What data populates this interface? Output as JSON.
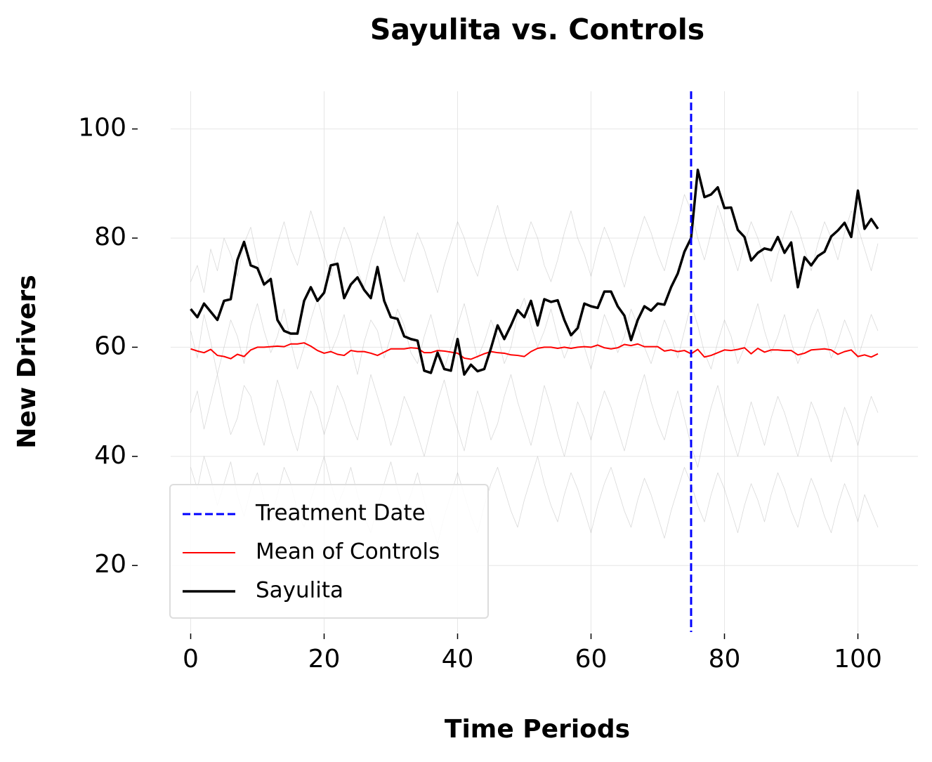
{
  "chart_data": {
    "type": "line",
    "title": "Sayulita vs. Controls",
    "x_label": "Time Periods",
    "y_label": "New Drivers",
    "xlim": [
      -3,
      109
    ],
    "xticks": [
      0,
      20,
      40,
      60,
      80,
      100
    ],
    "ylim": [
      7.8,
      106.9
    ],
    "yticks": [
      20,
      40,
      60,
      80,
      100
    ],
    "grid": true,
    "legend": "lower left",
    "x": [
      0,
      1,
      2,
      3,
      4,
      5,
      6,
      7,
      8,
      9,
      10,
      11,
      12,
      13,
      14,
      15,
      16,
      17,
      18,
      19,
      20,
      21,
      22,
      23,
      24,
      25,
      26,
      27,
      28,
      29,
      30,
      31,
      32,
      33,
      34,
      35,
      36,
      37,
      38,
      39,
      40,
      41,
      42,
      43,
      44,
      45,
      46,
      47,
      48,
      49,
      50,
      51,
      52,
      53,
      54,
      55,
      56,
      57,
      58,
      59,
      60,
      61,
      62,
      63,
      64,
      65,
      66,
      67,
      68,
      69,
      70,
      71,
      72,
      73,
      74,
      75,
      76,
      77,
      78,
      79,
      80,
      81,
      82,
      83,
      84,
      85,
      86,
      87,
      88,
      89,
      90,
      91,
      92,
      93,
      94,
      95,
      96,
      97,
      98,
      99,
      100,
      101,
      102,
      103
    ],
    "vlines": [
      {
        "x": 75,
        "name": "Treatment Date",
        "color": "#0000ff",
        "dash": true
      }
    ],
    "series": [
      {
        "color": "#aaaaaa",
        "values": [
          72,
          75,
          70,
          78,
          74,
          80,
          77,
          73,
          79,
          82,
          76,
          71,
          74,
          79,
          83,
          78,
          75,
          80,
          85,
          81,
          77,
          73,
          78,
          82,
          79,
          74,
          71,
          76,
          80,
          84,
          79,
          75,
          72,
          77,
          81,
          78,
          74,
          70,
          75,
          79,
          83,
          80,
          76,
          73,
          78,
          82,
          86,
          81,
          77,
          74,
          79,
          83,
          80,
          75,
          72,
          76,
          81,
          85,
          80,
          77,
          73,
          78,
          82,
          79,
          75,
          71,
          76,
          80,
          84,
          81,
          77,
          74,
          79,
          83,
          88,
          85,
          80,
          76,
          81,
          86,
          82,
          78,
          74,
          79,
          83,
          80,
          76,
          72,
          77,
          81,
          85,
          82,
          78,
          74,
          79,
          83,
          80,
          76,
          81,
          85,
          82,
          78,
          74,
          79
        ]
      },
      {
        "color": "#aaaaaa",
        "values": [
          48,
          52,
          45,
          50,
          55,
          49,
          44,
          47,
          53,
          51,
          46,
          42,
          48,
          54,
          50,
          45,
          41,
          47,
          52,
          49,
          44,
          48,
          53,
          50,
          46,
          43,
          49,
          55,
          51,
          47,
          42,
          46,
          51,
          48,
          44,
          40,
          45,
          50,
          54,
          49,
          45,
          41,
          47,
          52,
          48,
          43,
          46,
          51,
          55,
          50,
          46,
          42,
          47,
          53,
          49,
          44,
          40,
          45,
          50,
          47,
          43,
          48,
          52,
          49,
          45,
          41,
          46,
          51,
          55,
          50,
          46,
          43,
          48,
          52,
          47,
          42,
          38,
          44,
          49,
          53,
          48,
          44,
          40,
          45,
          50,
          46,
          42,
          47,
          51,
          48,
          44,
          40,
          45,
          50,
          47,
          43,
          39,
          44,
          49,
          46,
          42,
          47,
          51,
          48
        ]
      },
      {
        "color": "#aaaaaa",
        "values": [
          63,
          58,
          66,
          61,
          55,
          60,
          65,
          62,
          57,
          64,
          68,
          63,
          59,
          62,
          67,
          61,
          56,
          60,
          65,
          69,
          64,
          59,
          62,
          66,
          60,
          55,
          61,
          65,
          63,
          58,
          62,
          67,
          64,
          59,
          57,
          62,
          66,
          61,
          56,
          60,
          64,
          68,
          63,
          58,
          61,
          65,
          62,
          57,
          60,
          66,
          69,
          64,
          60,
          63,
          67,
          62,
          58,
          61,
          65,
          60,
          56,
          61,
          66,
          63,
          59,
          62,
          67,
          64,
          60,
          57,
          61,
          65,
          62,
          58,
          63,
          68,
          64,
          59,
          56,
          61,
          65,
          62,
          57,
          60,
          64,
          68,
          63,
          59,
          62,
          66,
          61,
          57,
          60,
          64,
          67,
          63,
          58,
          61,
          65,
          62,
          58,
          62,
          66,
          63
        ]
      },
      {
        "color": "#aaaaaa",
        "values": [
          38,
          34,
          40,
          36,
          31,
          35,
          39,
          33,
          29,
          34,
          37,
          32,
          28,
          33,
          38,
          35,
          30,
          27,
          32,
          36,
          40,
          35,
          31,
          34,
          38,
          33,
          29,
          26,
          31,
          35,
          39,
          34,
          30,
          33,
          37,
          32,
          28,
          24,
          29,
          33,
          37,
          33,
          29,
          26,
          31,
          35,
          38,
          34,
          30,
          27,
          32,
          36,
          40,
          35,
          31,
          28,
          33,
          37,
          34,
          30,
          26,
          31,
          35,
          38,
          34,
          30,
          27,
          32,
          36,
          33,
          29,
          25,
          30,
          34,
          38,
          35,
          31,
          28,
          33,
          37,
          34,
          30,
          26,
          31,
          35,
          32,
          28,
          33,
          37,
          34,
          30,
          27,
          32,
          36,
          33,
          29,
          26,
          31,
          35,
          32,
          28,
          33,
          30,
          27
        ]
      },
      {
        "name": "Mean of Controls",
        "color": "#ff0000",
        "values": [
          59.7,
          59.3,
          59.0,
          59.6,
          58.5,
          58.3,
          57.9,
          58.7,
          58.3,
          59.5,
          60.0,
          60.0,
          60.1,
          60.2,
          60.1,
          60.6,
          60.6,
          60.8,
          60.2,
          59.4,
          58.9,
          59.2,
          58.7,
          58.5,
          59.4,
          59.2,
          59.2,
          58.9,
          58.5,
          59.1,
          59.7,
          59.7,
          59.7,
          59.9,
          59.8,
          59.0,
          59.0,
          59.4,
          59.3,
          59.1,
          58.9,
          58.0,
          57.8,
          58.3,
          58.8,
          59.2,
          59.0,
          58.9,
          58.6,
          58.5,
          58.3,
          59.2,
          59.8,
          60.0,
          60.0,
          59.8,
          60.0,
          59.8,
          60.0,
          60.1,
          60.0,
          60.4,
          59.9,
          59.7,
          59.9,
          60.5,
          60.3,
          60.6,
          60.1,
          60.1,
          60.1,
          59.3,
          59.5,
          59.2,
          59.4,
          58.8,
          59.6,
          58.2,
          58.5,
          59.0,
          59.5,
          59.4,
          59.6,
          59.9,
          58.8,
          59.8,
          59.1,
          59.5,
          59.5,
          59.4,
          59.4,
          58.6,
          58.9,
          59.5,
          59.6,
          59.7,
          59.5,
          58.7,
          59.2,
          59.5,
          58.3,
          58.6,
          58.2,
          58.8
        ]
      },
      {
        "name": "Sayulita",
        "color": "#000000",
        "values": [
          67,
          65.5,
          68,
          66.5,
          65,
          68.5,
          68.8,
          76,
          79.3,
          75,
          74.5,
          71.5,
          72.5,
          65,
          63,
          62.5,
          62.5,
          68.5,
          71,
          68.5,
          70,
          75,
          75.3,
          69,
          71.5,
          72.8,
          70.5,
          69,
          74.7,
          68.5,
          65.5,
          65.2,
          62,
          61.5,
          61.2,
          55.7,
          55.3,
          59,
          56,
          55.7,
          61.5,
          55,
          56.8,
          55.6,
          56,
          59.8,
          64,
          61.5,
          64,
          66.8,
          65.5,
          68.5,
          64,
          68.8,
          68.3,
          68.6,
          65,
          62.2,
          63.5,
          68,
          67.5,
          67.2,
          70.2,
          70.2,
          67.5,
          65.8,
          61.3,
          65,
          67.5,
          66.7,
          68,
          67.8,
          71,
          73.5,
          77.5,
          80,
          92.5,
          87.5,
          88,
          89.3,
          85.5,
          85.6,
          81.5,
          80.2,
          75.9,
          77.3,
          78.1,
          77.8,
          80.2,
          77.3,
          79.2,
          71,
          76.5,
          75,
          76.7,
          77.5,
          80.3,
          81.4,
          82.8,
          80.2,
          88.7,
          81.7,
          83.5,
          81.7
        ]
      }
    ]
  }
}
